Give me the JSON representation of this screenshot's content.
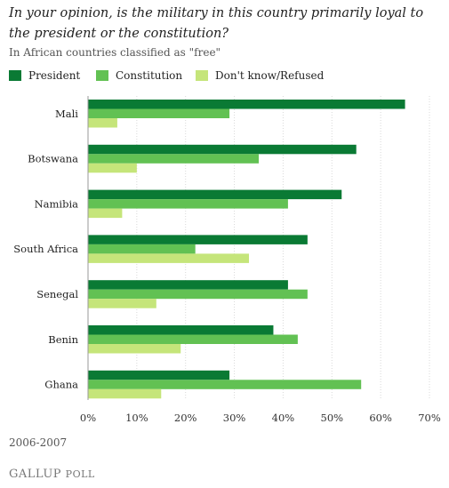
{
  "title": "In your opinion, is the military in this country primarily loyal to the president or the constitution?",
  "subtitle": "In African countries classified as \"free\"",
  "footnote": "2006-2007",
  "brand": {
    "name": "GALLUP",
    "suffix": "POLL"
  },
  "colors": {
    "president": "#0a7a34",
    "constitution": "#62c153",
    "dont_know": "#c5e57a"
  },
  "chart_data": {
    "type": "bar",
    "orientation": "horizontal",
    "categories": [
      "Mali",
      "Botswana",
      "Namibia",
      "South Africa",
      "Senegal",
      "Benin",
      "Ghana"
    ],
    "series": [
      {
        "name": "President",
        "values": [
          65,
          55,
          52,
          45,
          41,
          38,
          29
        ]
      },
      {
        "name": "Constitution",
        "values": [
          29,
          35,
          41,
          22,
          45,
          43,
          56
        ]
      },
      {
        "name": "Don't know/Refused",
        "values": [
          6,
          10,
          7,
          33,
          14,
          19,
          15
        ]
      }
    ],
    "xlim": [
      0,
      70
    ],
    "xticks": [
      "0%",
      "10%",
      "20%",
      "30%",
      "40%",
      "50%",
      "60%",
      "70%"
    ],
    "legend_position": "top-left",
    "grid": true
  }
}
